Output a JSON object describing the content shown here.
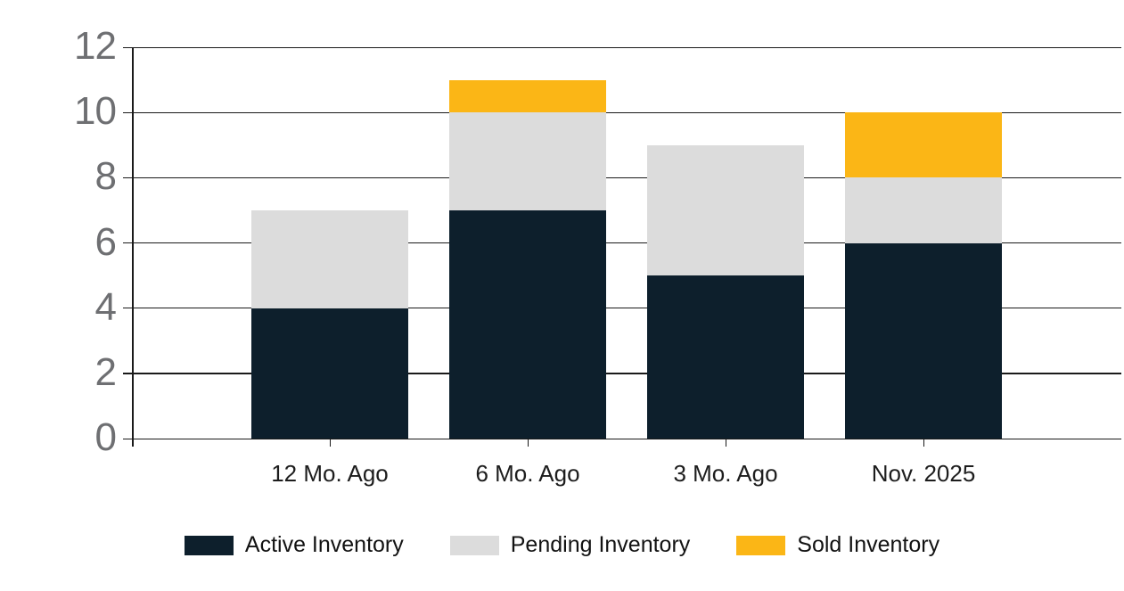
{
  "colors": {
    "active": "#0d1f2c",
    "pending": "#dcdcdc",
    "sold": "#fbb616",
    "axis_line": "#1a1a1a",
    "y_tick_label": "#6e6f72",
    "category_label": "#1d1d1d",
    "background": "#ffffff"
  },
  "chart_data": {
    "type": "bar",
    "stacked": true,
    "title": "",
    "xlabel": "",
    "ylabel": "",
    "categories": [
      "12 Mo. Ago",
      "6 Mo. Ago",
      "3 Mo. Ago",
      "Nov. 2025"
    ],
    "series": [
      {
        "name": "Active Inventory",
        "color_key": "active",
        "values": [
          4,
          7,
          5,
          6
        ]
      },
      {
        "name": "Pending Inventory",
        "color_key": "pending",
        "values": [
          3,
          3,
          4,
          2
        ]
      },
      {
        "name": "Sold Inventory",
        "color_key": "sold",
        "values": [
          0,
          1,
          0,
          2
        ]
      }
    ],
    "stack_totals": [
      7,
      11,
      9,
      10
    ],
    "ylim": [
      0,
      12
    ],
    "yticks": [
      0,
      2,
      4,
      6,
      8,
      10,
      12
    ],
    "grid": true,
    "legend_position": "bottom"
  },
  "legend": {
    "items": [
      {
        "label": "Active Inventory",
        "color_key": "active"
      },
      {
        "label": "Pending Inventory",
        "color_key": "pending"
      },
      {
        "label": "Sold Inventory",
        "color_key": "sold"
      }
    ]
  }
}
